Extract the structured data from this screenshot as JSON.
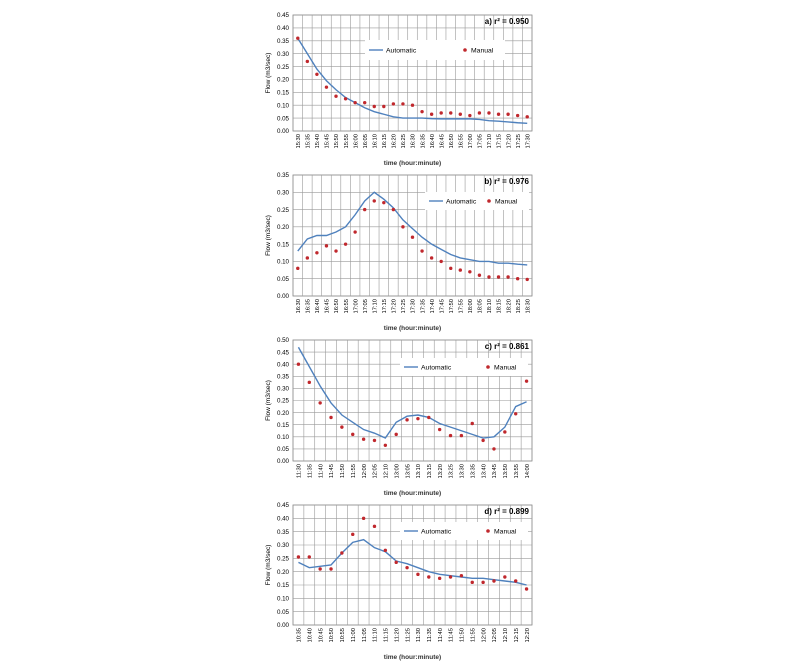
{
  "chart_data": [
    {
      "type": "line",
      "panel_label": "a) r² = 0.950",
      "ylabel": "Flow (m3/sec)",
      "xlabel": "time (hour:minute)",
      "ylim": [
        0,
        0.45
      ],
      "yticks": [
        0.0,
        0.05,
        0.1,
        0.15,
        0.2,
        0.25,
        0.3,
        0.35,
        0.4,
        0.45
      ],
      "grid": true,
      "legend_position": "top-right",
      "x": [
        "15:30",
        "15:35",
        "15:40",
        "15:45",
        "15:50",
        "15:55",
        "16:00",
        "16:05",
        "16:10",
        "16:15",
        "16:20",
        "16:25",
        "16:30",
        "16:35",
        "16:40",
        "16:45",
        "16:50",
        "16:55",
        "17:00",
        "17:05",
        "17:10",
        "17:15",
        "17:20",
        "17:25",
        "17:30"
      ],
      "series": [
        {
          "name": "Automatic",
          "style": "line",
          "color": "#4f81bd",
          "values": [
            0.36,
            0.3,
            0.24,
            0.195,
            0.16,
            0.13,
            0.11,
            0.09,
            0.075,
            0.065,
            0.055,
            0.05,
            0.05,
            0.05,
            0.048,
            0.047,
            0.047,
            0.047,
            0.047,
            0.045,
            0.04,
            0.038,
            0.035,
            0.032,
            0.03
          ]
        },
        {
          "name": "Manual",
          "style": "marker",
          "color": "#c0282d",
          "values": [
            0.36,
            0.27,
            0.22,
            0.17,
            0.135,
            0.125,
            0.11,
            0.11,
            0.095,
            0.095,
            0.105,
            0.105,
            0.1,
            0.075,
            0.065,
            0.07,
            0.07,
            0.065,
            0.06,
            0.07,
            0.07,
            0.065,
            0.065,
            0.06,
            0.055
          ]
        }
      ]
    },
    {
      "type": "line",
      "panel_label": "b) r² = 0.976",
      "ylabel": "Flow (m3/sec)",
      "xlabel": "time (hour:minute)",
      "ylim": [
        0,
        0.35
      ],
      "yticks": [
        0.0,
        0.05,
        0.1,
        0.15,
        0.2,
        0.25,
        0.3,
        0.35
      ],
      "grid": true,
      "legend_position": "top-right",
      "x": [
        "16:30",
        "16:35",
        "16:40",
        "16:45",
        "16:50",
        "16:55",
        "17:00",
        "17:05",
        "17:10",
        "17:15",
        "17:20",
        "17:25",
        "17:30",
        "17:35",
        "17:40",
        "17:45",
        "17:50",
        "17:55",
        "18:00",
        "18:05",
        "18:10",
        "18:15",
        "18:20",
        "18:25",
        "18:30"
      ],
      "series": [
        {
          "name": "Automatic",
          "style": "line",
          "color": "#4f81bd",
          "values": [
            0.13,
            0.165,
            0.175,
            0.175,
            0.185,
            0.2,
            0.235,
            0.275,
            0.3,
            0.28,
            0.255,
            0.22,
            0.195,
            0.17,
            0.15,
            0.135,
            0.12,
            0.11,
            0.105,
            0.1,
            0.1,
            0.095,
            0.095,
            0.092,
            0.09
          ]
        },
        {
          "name": "Manual",
          "style": "marker",
          "color": "#c0282d",
          "values": [
            0.08,
            0.11,
            0.125,
            0.145,
            0.13,
            0.15,
            0.185,
            0.25,
            0.275,
            0.27,
            0.25,
            0.2,
            0.17,
            0.13,
            0.11,
            0.1,
            0.08,
            0.075,
            0.07,
            0.06,
            0.055,
            0.055,
            0.055,
            0.05,
            0.048
          ]
        }
      ]
    },
    {
      "type": "line",
      "panel_label": "c) r² = 0.861",
      "ylabel": "Flow (m3/sec)",
      "xlabel": "time (hour:minute)",
      "ylim": [
        0,
        0.5
      ],
      "yticks": [
        0.0,
        0.05,
        0.1,
        0.15,
        0.2,
        0.25,
        0.3,
        0.35,
        0.4,
        0.45,
        0.5
      ],
      "grid": true,
      "legend_position": "top-right",
      "x": [
        "11:30",
        "11:35",
        "11:40",
        "11:45",
        "11:50",
        "11:55",
        "12:00",
        "12:05",
        "12:10",
        "13:00",
        "13:05",
        "13:10",
        "13:15",
        "13:20",
        "13:25",
        "13:30",
        "13:35",
        "13:40",
        "13:45",
        "13:50",
        "13:55",
        "14:00"
      ],
      "series": [
        {
          "name": "Automatic",
          "style": "line",
          "color": "#4f81bd",
          "values": [
            0.47,
            0.39,
            0.31,
            0.24,
            0.19,
            0.16,
            0.13,
            0.115,
            0.095,
            0.16,
            0.185,
            0.19,
            0.18,
            0.155,
            0.14,
            0.125,
            0.11,
            0.095,
            0.1,
            0.14,
            0.225,
            0.245
          ]
        },
        {
          "name": "Manual",
          "style": "marker",
          "color": "#c0282d",
          "values": [
            0.4,
            0.325,
            0.24,
            0.18,
            0.14,
            0.11,
            0.09,
            0.085,
            0.065,
            0.11,
            0.17,
            0.175,
            0.18,
            0.13,
            0.105,
            0.105,
            0.155,
            0.085,
            0.05,
            0.12,
            0.195,
            0.33
          ]
        }
      ]
    },
    {
      "type": "line",
      "panel_label": "d) r² = 0.899",
      "ylabel": "Flow (m3/sec)",
      "xlabel": "time (hour:minute)",
      "ylim": [
        0,
        0.45
      ],
      "yticks": [
        0.0,
        0.05,
        0.1,
        0.15,
        0.2,
        0.25,
        0.3,
        0.35,
        0.4,
        0.45
      ],
      "grid": true,
      "legend_position": "top-right",
      "x": [
        "10:35",
        "10:40",
        "10:45",
        "10:50",
        "10:55",
        "11:00",
        "11:05",
        "11:10",
        "11:15",
        "11:20",
        "11:25",
        "11:30",
        "11:35",
        "11:40",
        "11:45",
        "11:50",
        "11:55",
        "12:00",
        "12:05",
        "12:10",
        "12:15",
        "12:20"
      ],
      "series": [
        {
          "name": "Automatic",
          "style": "line",
          "color": "#4f81bd",
          "values": [
            0.235,
            0.215,
            0.22,
            0.225,
            0.27,
            0.31,
            0.32,
            0.29,
            0.275,
            0.24,
            0.23,
            0.215,
            0.2,
            0.19,
            0.185,
            0.18,
            0.175,
            0.175,
            0.17,
            0.165,
            0.16,
            0.15
          ]
        },
        {
          "name": "Manual",
          "style": "marker",
          "color": "#c0282d",
          "values": [
            0.255,
            0.255,
            0.21,
            0.21,
            0.27,
            0.34,
            0.4,
            0.37,
            0.28,
            0.235,
            0.215,
            0.19,
            0.18,
            0.175,
            0.18,
            0.185,
            0.16,
            0.16,
            0.165,
            0.18,
            0.165,
            0.135
          ]
        }
      ]
    }
  ]
}
